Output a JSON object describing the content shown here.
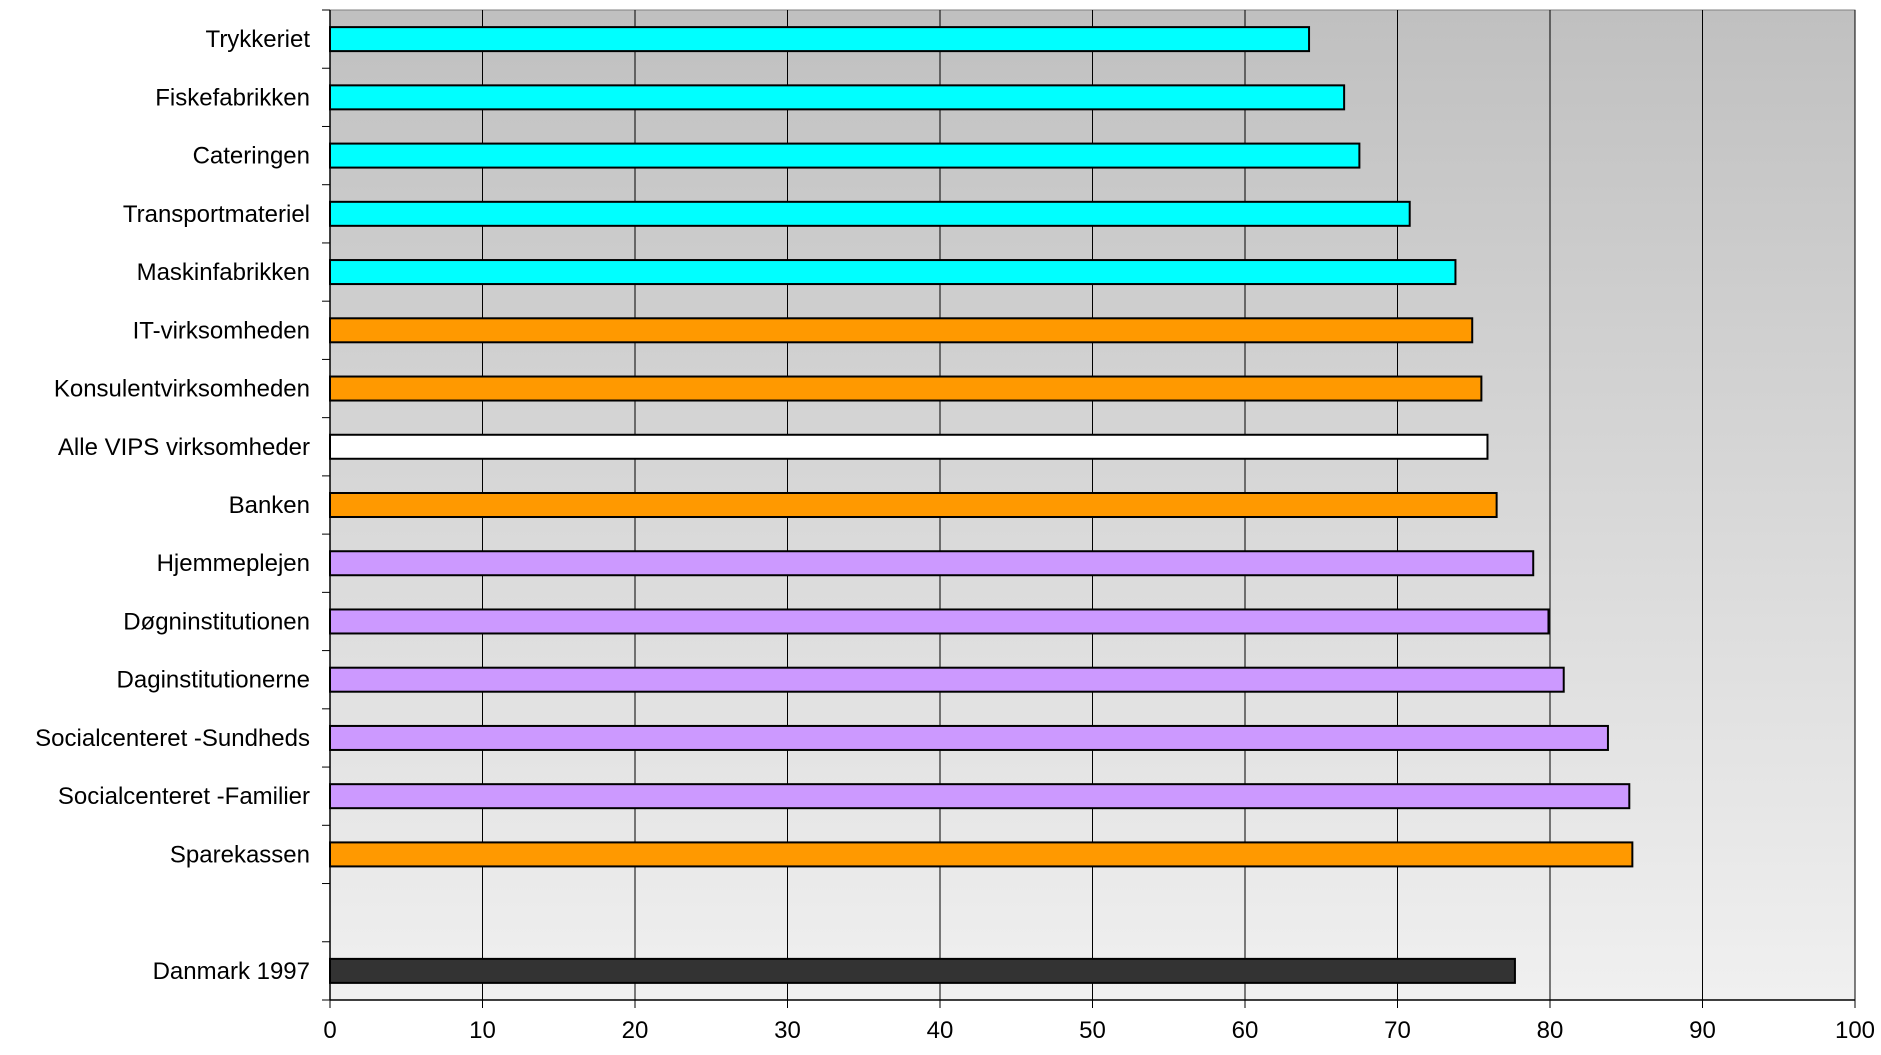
{
  "chart_data": {
    "type": "bar",
    "orientation": "horizontal",
    "title": "",
    "xlabel": "",
    "ylabel": "",
    "xlim": [
      0,
      100
    ],
    "x_ticks": [
      "0",
      "10",
      "20",
      "30",
      "40",
      "50",
      "60",
      "70",
      "80",
      "90",
      "100"
    ],
    "grid": "vertical",
    "legend": "none",
    "background": "gradient gray (darker at top, lighter at bottom)",
    "categories": [
      {
        "label": "Trykkeriet",
        "value": 64.2,
        "color": "#00FFFF"
      },
      {
        "label": "Fiskefabrikken",
        "value": 66.5,
        "color": "#00FFFF"
      },
      {
        "label": "Cateringen",
        "value": 67.5,
        "color": "#00FFFF"
      },
      {
        "label": "Transportmateriel",
        "value": 70.8,
        "color": "#00FFFF"
      },
      {
        "label": "Maskinfabrikken",
        "value": 73.8,
        "color": "#00FFFF"
      },
      {
        "label": "IT-virksomheden",
        "value": 74.9,
        "color": "#FF9900"
      },
      {
        "label": "Konsulentvirksomheden",
        "value": 75.5,
        "color": "#FF9900"
      },
      {
        "label": "Alle VIPS virksomheder",
        "value": 75.9,
        "color": "#FFFFFF"
      },
      {
        "label": "Banken",
        "value": 76.5,
        "color": "#FF9900"
      },
      {
        "label": "Hjemmeplejen",
        "value": 78.9,
        "color": "#CC99FF"
      },
      {
        "label": "Døgninstitutionen",
        "value": 79.9,
        "color": "#CC99FF"
      },
      {
        "label": "Daginstitutionerne",
        "value": 80.9,
        "color": "#CC99FF"
      },
      {
        "label": "Socialcenteret -Sundheds",
        "value": 83.8,
        "color": "#CC99FF"
      },
      {
        "label": "Socialcenteret -Familier",
        "value": 85.2,
        "color": "#CC99FF"
      },
      {
        "label": "Sparekassen",
        "value": 85.4,
        "color": "#FF9900"
      },
      {
        "label": "",
        "value": null,
        "color": ""
      },
      {
        "label": "Danmark 1997",
        "value": 77.7,
        "color": "#333333"
      }
    ]
  }
}
